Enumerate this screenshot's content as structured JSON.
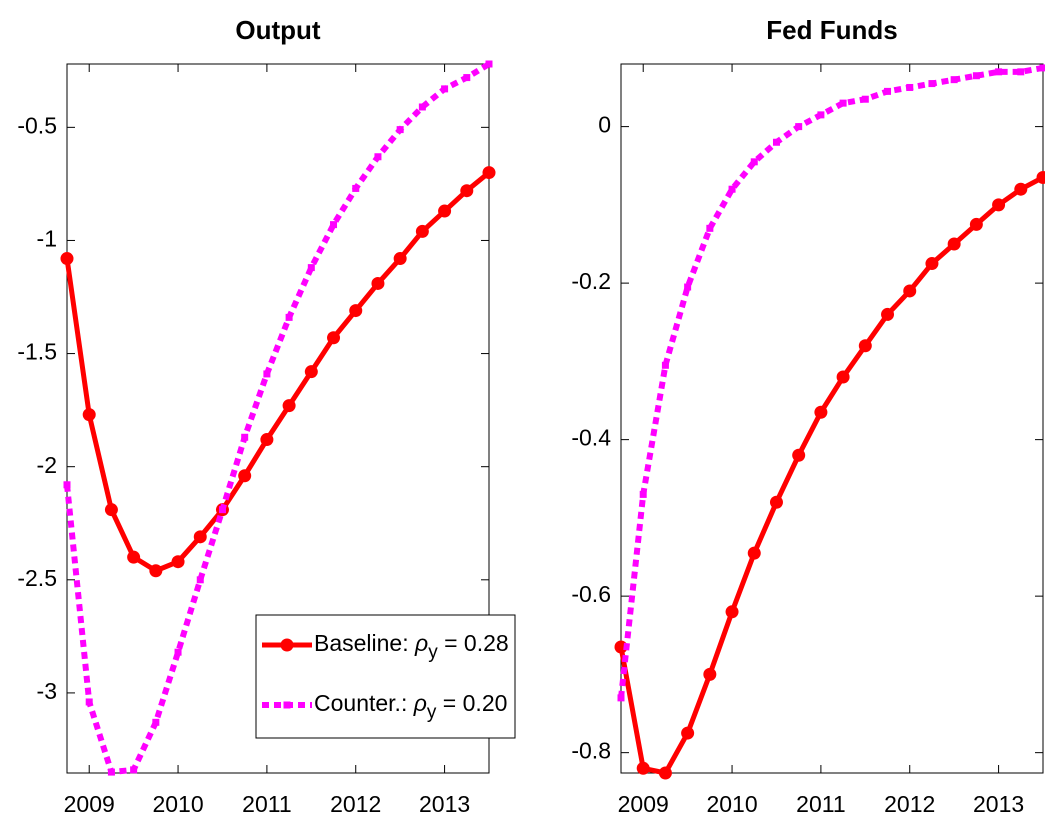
{
  "chart_data": [
    {
      "type": "line",
      "title": "Output",
      "x": [
        2008.75,
        2009,
        2009.25,
        2009.5,
        2009.75,
        2010,
        2010.25,
        2010.5,
        2010.75,
        2011,
        2011.25,
        2011.5,
        2011.75,
        2012,
        2012.25,
        2012.5,
        2012.75,
        2013,
        2013.25,
        2013.5
      ],
      "xlim": [
        2008.75,
        2013.5
      ],
      "xticks": [
        2009,
        2010,
        2011,
        2012,
        2013
      ],
      "ylim": [
        -3.354,
        -0.22
      ],
      "yticks": [
        -3,
        -2.5,
        -2,
        -1.5,
        -1,
        -0.5
      ],
      "grid": false,
      "legend": "lower right",
      "series": [
        {
          "name": "Baseline: ρy = 0.28",
          "color": "#ff0000",
          "values": [
            -1.08,
            -1.77,
            -2.19,
            -2.4,
            -2.46,
            -2.42,
            -2.31,
            -2.19,
            -2.04,
            -1.88,
            -1.73,
            -1.58,
            -1.43,
            -1.31,
            -1.19,
            -1.08,
            -0.96,
            -0.87,
            -0.78,
            -0.7
          ]
        },
        {
          "name": "Counter.: ρy = 0.20",
          "color": "#ff00ff",
          "values": [
            -2.08,
            -3.04,
            -3.35,
            -3.34,
            -3.13,
            -2.82,
            -2.5,
            -2.19,
            -1.87,
            -1.59,
            -1.34,
            -1.12,
            -0.93,
            -0.77,
            -0.63,
            -0.51,
            -0.41,
            -0.33,
            -0.28,
            -0.22
          ]
        }
      ]
    },
    {
      "type": "line",
      "title": "Fed Funds",
      "x": [
        2008.75,
        2009,
        2009.25,
        2009.5,
        2009.75,
        2010,
        2010.25,
        2010.5,
        2010.75,
        2011,
        2011.25,
        2011.5,
        2011.75,
        2012,
        2012.25,
        2012.5,
        2012.75,
        2013,
        2013.25,
        2013.5
      ],
      "xlim": [
        2008.75,
        2013.5
      ],
      "xticks": [
        2009,
        2010,
        2011,
        2012,
        2013
      ],
      "ylim": [
        -0.826,
        0.08
      ],
      "yticks": [
        -0.8,
        -0.6,
        -0.4,
        -0.2,
        0
      ],
      "grid": false,
      "series": [
        {
          "name": "Baseline: ρy = 0.28",
          "color": "#ff0000",
          "values": [
            -0.665,
            -0.82,
            -0.826,
            -0.775,
            -0.7,
            -0.62,
            -0.545,
            -0.48,
            -0.42,
            -0.365,
            -0.32,
            -0.28,
            -0.24,
            -0.21,
            -0.175,
            -0.15,
            -0.125,
            -0.1,
            -0.08,
            -0.065
          ]
        },
        {
          "name": "Counter.: ρy = 0.20",
          "color": "#ff00ff",
          "values": [
            -0.73,
            -0.47,
            -0.305,
            -0.205,
            -0.13,
            -0.08,
            -0.045,
            -0.02,
            0.0,
            0.015,
            0.03,
            0.035,
            0.045,
            0.05,
            0.055,
            0.06,
            0.065,
            0.07,
            0.07,
            0.075
          ]
        }
      ]
    }
  ]
}
